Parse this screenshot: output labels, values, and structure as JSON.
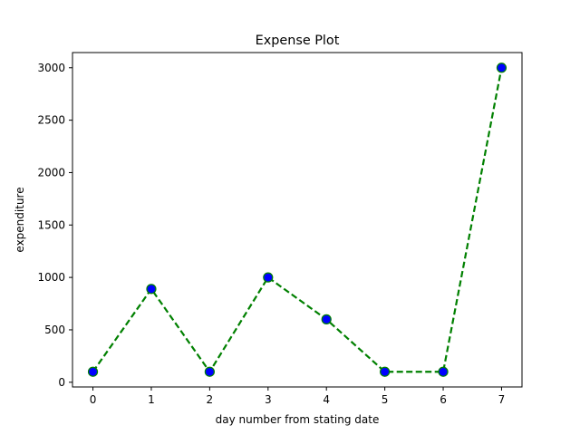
{
  "chart_data": {
    "type": "line",
    "title": "Expense Plot",
    "xlabel": "day number from stating date",
    "ylabel": "expenditure",
    "x": [
      0,
      1,
      2,
      3,
      4,
      5,
      6,
      7
    ],
    "series": [
      {
        "values": [
          100,
          890,
          100,
          1000,
          600,
          100,
          100,
          3000
        ]
      }
    ],
    "xticks": [
      0,
      1,
      2,
      3,
      4,
      5,
      6,
      7
    ],
    "yticks": [
      0,
      500,
      1000,
      1500,
      2000,
      2500,
      3000
    ],
    "xlim": [
      -0.35,
      7.35
    ],
    "ylim": [
      -45,
      3145
    ],
    "line_color": "#008000",
    "line_style": "dashed",
    "marker": "circle",
    "marker_face_color": "#0000ff",
    "marker_edge_color": "#008000",
    "grid": false
  }
}
